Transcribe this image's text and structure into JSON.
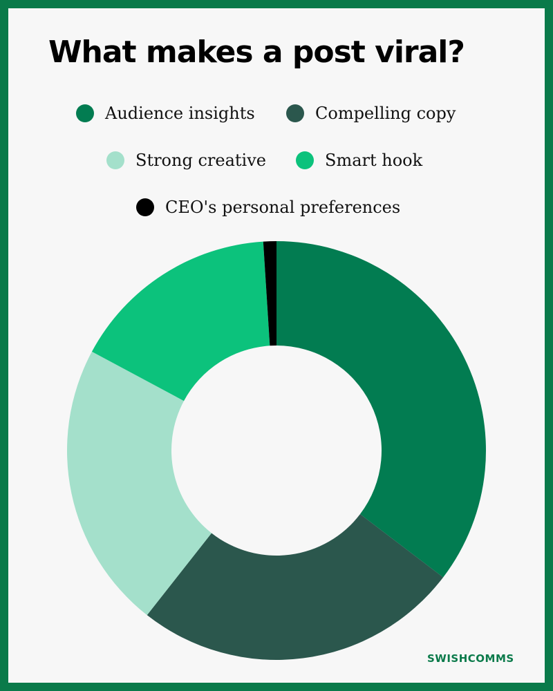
{
  "title": "What makes a post viral?",
  "brand": "SWISHCOMMS",
  "chart_data": {
    "type": "pie",
    "variant": "donut",
    "title": "What makes a post viral?",
    "legend_position": "top",
    "slices": [
      {
        "label": "Audience insights",
        "value": 35,
        "color": "#027c51"
      },
      {
        "label": "Compelling copy",
        "value": 25,
        "color": "#2b574d"
      },
      {
        "label": "Strong creative",
        "value": 22,
        "color": "#a4e0cb"
      },
      {
        "label": "Smart hook",
        "value": 16,
        "color": "#0cc27c"
      },
      {
        "label": "CEO's personal preferences",
        "value": 1,
        "color": "#000000"
      }
    ]
  }
}
